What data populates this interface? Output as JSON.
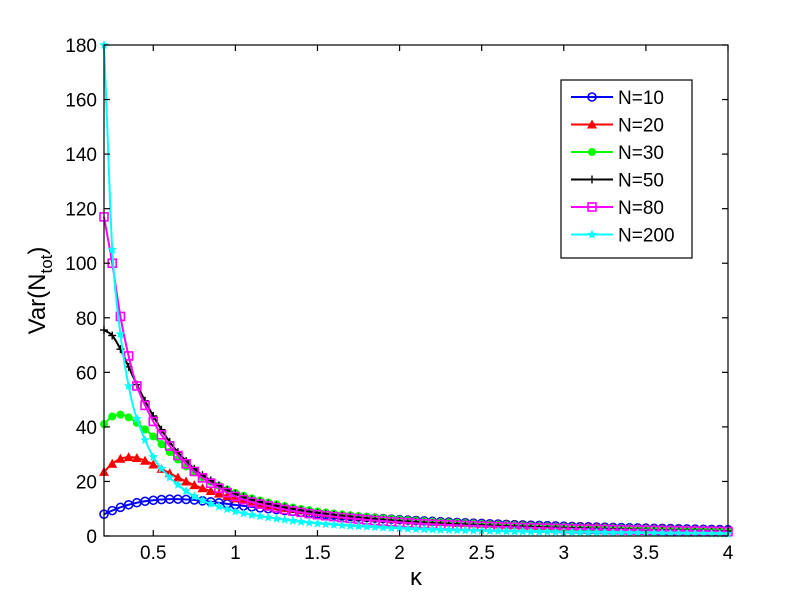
{
  "chart_data": {
    "type": "line",
    "title": "",
    "xlabel": "κ",
    "ylabel": {
      "main": "Var(N",
      "sub": "tot",
      "close": ")"
    },
    "xlim": [
      0.2,
      4
    ],
    "ylim": [
      0,
      180
    ],
    "xticks": [
      0.5,
      1,
      1.5,
      2,
      2.5,
      3,
      3.5,
      4
    ],
    "xtick_labels": [
      "0.5",
      "1",
      "1.5",
      "2",
      "2.5",
      "3",
      "3.5",
      "4"
    ],
    "yticks": [
      0,
      20,
      40,
      60,
      80,
      100,
      120,
      140,
      160,
      180
    ],
    "ytick_labels": [
      "0",
      "20",
      "40",
      "60",
      "80",
      "100",
      "120",
      "140",
      "160",
      "180"
    ],
    "grid": false,
    "legend_position": "top-right",
    "series": [
      {
        "name": "N=10",
        "color": "#0000ff",
        "marker": "circle-open",
        "x": [
          0.2,
          0.3,
          0.4,
          0.5,
          0.6,
          0.7,
          0.8,
          1.0,
          1.2,
          1.5,
          2.0,
          2.5,
          3.0,
          3.5,
          4.0
        ],
        "y": [
          8,
          10.5,
          12.2,
          13.1,
          13.5,
          13.4,
          12.9,
          11.4,
          10.0,
          8.1,
          6.0,
          4.6,
          3.6,
          2.9,
          2.3
        ]
      },
      {
        "name": "N=20",
        "color": "#ff0000",
        "marker": "triangle",
        "x": [
          0.2,
          0.25,
          0.3,
          0.35,
          0.4,
          0.45,
          0.5,
          0.6,
          0.7,
          0.8,
          1.0,
          1.2,
          1.5,
          2.0,
          2.5,
          3.0,
          3.5,
          4.0
        ],
        "y": [
          23.5,
          26.5,
          28.3,
          28.9,
          28.6,
          27.6,
          26.2,
          23.0,
          20.0,
          17.5,
          13.8,
          11.3,
          8.7,
          6.0,
          4.5,
          3.5,
          2.8,
          2.2
        ]
      },
      {
        "name": "N=30",
        "color": "#00ff00",
        "marker": "dot",
        "x": [
          0.2,
          0.25,
          0.3,
          0.35,
          0.4,
          0.5,
          0.6,
          0.7,
          0.8,
          1.0,
          1.2,
          1.5,
          2.0,
          2.5,
          3.0,
          3.5,
          4.0
        ],
        "y": [
          41,
          43.8,
          44.5,
          43.5,
          41.5,
          36.5,
          30.8,
          25.5,
          21.5,
          15.8,
          12.3,
          9.0,
          6.0,
          4.4,
          3.3,
          2.6,
          2.0
        ]
      },
      {
        "name": "N=50",
        "color": "#000000",
        "marker": "plus",
        "x": [
          0.2,
          0.25,
          0.3,
          0.35,
          0.4,
          0.5,
          0.6,
          0.7,
          0.8,
          1.0,
          1.2,
          1.5,
          2.0,
          2.5,
          3.0,
          3.5,
          4.0
        ],
        "y": [
          75.5,
          73.5,
          68.5,
          62,
          55.5,
          44,
          34.5,
          27.5,
          22.3,
          15.5,
          11.8,
          8.5,
          5.5,
          4.0,
          3.0,
          2.3,
          1.8
        ]
      },
      {
        "name": "N=80",
        "color": "#ff00ff",
        "marker": "square-open",
        "x": [
          0.2,
          0.25,
          0.3,
          0.35,
          0.4,
          0.5,
          0.6,
          0.7,
          0.8,
          1.0,
          1.2,
          1.5,
          2.0,
          2.5,
          3.0,
          3.5,
          4.0
        ],
        "y": [
          117,
          100,
          80.5,
          66,
          55,
          42,
          33,
          26.5,
          21.3,
          14.5,
          11.0,
          7.8,
          5.0,
          3.6,
          2.7,
          2.1,
          1.6
        ]
      },
      {
        "name": "N=200",
        "color": "#00ffff",
        "marker": "star",
        "x": [
          0.2,
          0.22,
          0.25,
          0.3,
          0.35,
          0.4,
          0.5,
          0.6,
          0.7,
          0.8,
          1.0,
          1.2,
          1.5,
          2.0,
          2.5,
          3.0,
          3.5,
          4.0
        ],
        "y": [
          180,
          150,
          105,
          74,
          55,
          43,
          29,
          21.5,
          16.5,
          13.0,
          9.0,
          6.8,
          4.6,
          2.8,
          1.9,
          1.4,
          1.1,
          0.8
        ]
      }
    ]
  }
}
